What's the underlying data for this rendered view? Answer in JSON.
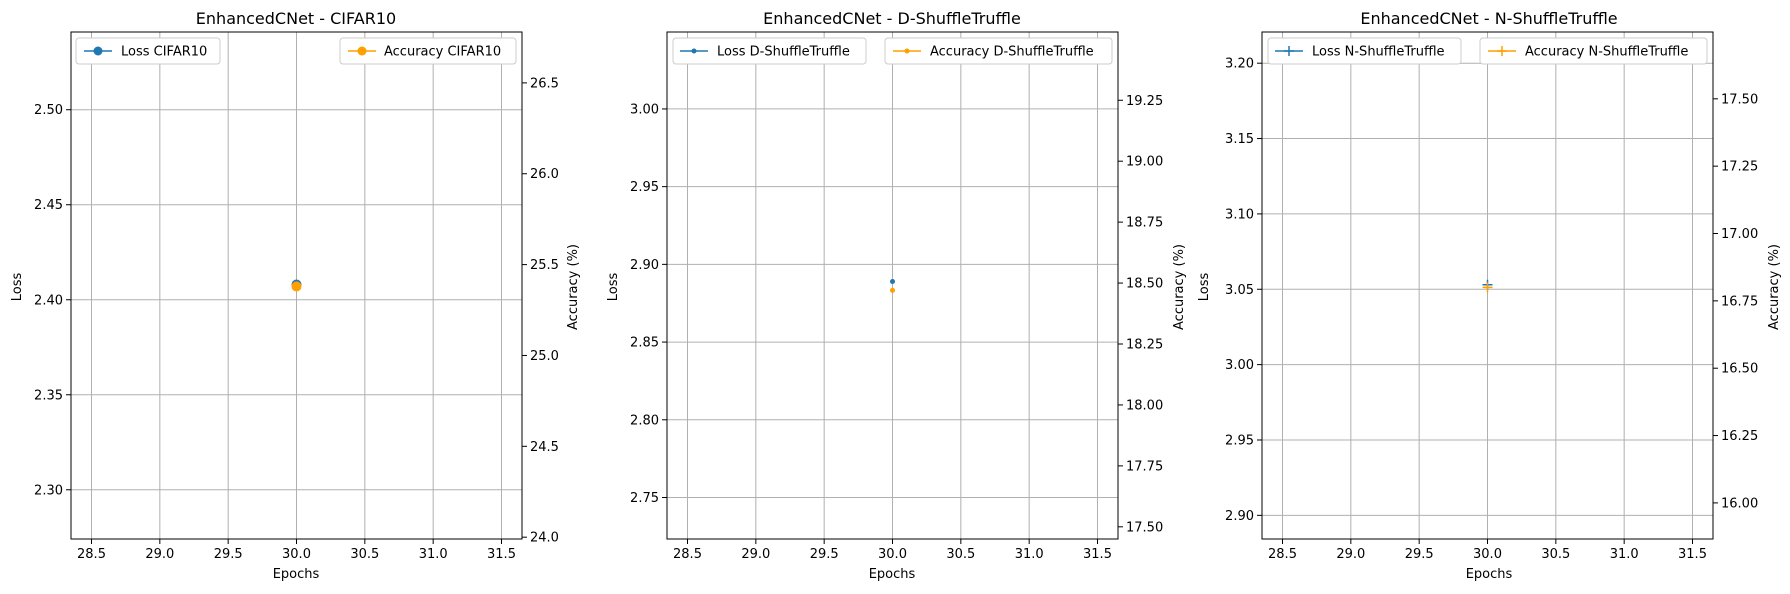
{
  "figure": {
    "panels": [
      {
        "title": "EnhancedCNet - CIFAR10",
        "xlabel": "Epochs",
        "ylabel_left": "Loss",
        "ylabel_right": "Accuracy (%)",
        "legend_left": "Loss CIFAR10",
        "legend_right": "Accuracy CIFAR10"
      },
      {
        "title": "EnhancedCNet - D-ShuffleTruffle",
        "xlabel": "Epochs",
        "ylabel_left": "Loss",
        "ylabel_right": "Accuracy (%)",
        "legend_left": "Loss D-ShuffleTruffle",
        "legend_right": "Accuracy D-ShuffleTruffle"
      },
      {
        "title": "EnhancedCNet - N-ShuffleTruffle",
        "xlabel": "Epochs",
        "ylabel_left": "Loss",
        "ylabel_right": "Accuracy (%)",
        "legend_left": "Loss N-ShuffleTruffle",
        "legend_right": "Accuracy N-ShuffleTruffle"
      }
    ]
  },
  "chart_data": [
    {
      "type": "line",
      "title": "EnhancedCNet - CIFAR10",
      "xlabel": "Epochs",
      "ylabel": "Loss",
      "y2label": "Accuracy (%)",
      "x": [
        30
      ],
      "xlim": [
        28.35,
        31.65
      ],
      "xticks": [
        "28.5",
        "29.0",
        "29.5",
        "30.0",
        "30.5",
        "31.0",
        "31.5"
      ],
      "ylim": [
        2.2741,
        2.5409
      ],
      "yticks": [
        "2.30",
        "2.35",
        "2.40",
        "2.45",
        "2.50"
      ],
      "y2lim": [
        23.99,
        26.78
      ],
      "y2ticks": [
        "24.0",
        "24.5",
        "25.0",
        "25.5",
        "26.0",
        "26.5"
      ],
      "marker": "circle",
      "series": [
        {
          "name": "Loss CIFAR10",
          "axis": "left",
          "values": [
            2.408
          ],
          "color": "#1f77b4"
        },
        {
          "name": "Accuracy CIFAR10",
          "axis": "right",
          "values": [
            25.38
          ],
          "color": "#ff9f00"
        }
      ],
      "grid": true,
      "legend": [
        "upper left",
        "upper right"
      ]
    },
    {
      "type": "line",
      "title": "EnhancedCNet - D-ShuffleTruffle",
      "xlabel": "Epochs",
      "ylabel": "Loss",
      "y2label": "Accuracy (%)",
      "x": [
        30
      ],
      "xlim": [
        28.35,
        31.65
      ],
      "xticks": [
        "28.5",
        "29.0",
        "29.5",
        "30.0",
        "30.5",
        "31.0",
        "31.5"
      ],
      "ylim": [
        2.7233,
        3.0495
      ],
      "yticks": [
        "2.75",
        "2.80",
        "2.85",
        "2.90",
        "2.95",
        "3.00"
      ],
      "y2lim": [
        17.45,
        19.53
      ],
      "y2ticks": [
        "17.50",
        "17.75",
        "18.00",
        "18.25",
        "18.50",
        "18.75",
        "19.00",
        "19.25"
      ],
      "marker": "point",
      "series": [
        {
          "name": "Loss D-ShuffleTruffle",
          "axis": "left",
          "values": [
            2.889
          ],
          "color": "#1f77b4"
        },
        {
          "name": "Accuracy D-ShuffleTruffle",
          "axis": "right",
          "values": [
            18.47
          ],
          "color": "#ff9f00"
        }
      ],
      "grid": true,
      "legend": [
        "upper left",
        "upper right"
      ]
    },
    {
      "type": "line",
      "title": "EnhancedCNet - N-ShuffleTruffle",
      "xlabel": "Epochs",
      "ylabel": "Loss",
      "y2label": "Accuracy (%)",
      "x": [
        30
      ],
      "xlim": [
        28.35,
        31.65
      ],
      "xticks": [
        "28.5",
        "29.0",
        "29.5",
        "30.0",
        "30.5",
        "31.0",
        "31.5"
      ],
      "ylim": [
        2.8843,
        3.2207
      ],
      "yticks": [
        "2.90",
        "2.95",
        "3.00",
        "3.05",
        "3.10",
        "3.15",
        "3.20"
      ],
      "y2lim": [
        15.866,
        17.748
      ],
      "y2ticks": [
        "16.00",
        "16.25",
        "16.50",
        "16.75",
        "17.00",
        "17.25",
        "17.50"
      ],
      "marker": "plus",
      "series": [
        {
          "name": "Loss N-ShuffleTruffle",
          "axis": "left",
          "values": [
            3.053
          ],
          "color": "#1f77b4"
        },
        {
          "name": "Accuracy N-ShuffleTruffle",
          "axis": "right",
          "values": [
            16.8
          ],
          "color": "#ff9f00"
        }
      ],
      "grid": true,
      "legend": [
        "upper left",
        "upper right"
      ]
    }
  ]
}
